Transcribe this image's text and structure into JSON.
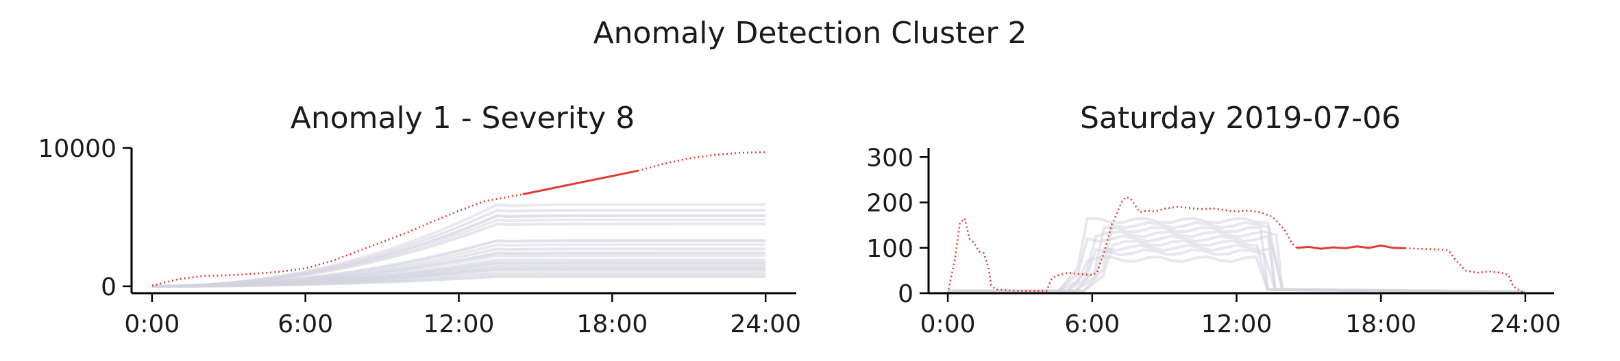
{
  "figure": {
    "suptitle": "Anomaly Detection Cluster 2"
  },
  "chart_data": [
    {
      "type": "line",
      "title": "Anomaly 1 - Severity 8",
      "xlabel": "",
      "ylabel": "",
      "xlim": [
        -0.8,
        25.2
      ],
      "ylim": [
        -500,
        10000
      ],
      "x_ticks": [
        0,
        6,
        12,
        18,
        24
      ],
      "x_tick_labels": [
        "0:00",
        "6:00",
        "12:00",
        "18:00",
        "24:00"
      ],
      "y_ticks": [
        0,
        10000
      ],
      "y_tick_labels": [
        "0",
        "10000"
      ],
      "grid": false,
      "legend": "none",
      "colors": {
        "background_series": "#d3d3df",
        "highlight": "#e03a33"
      },
      "background_final_values": [
        5900,
        5500,
        5100,
        4800,
        4500,
        3300,
        3000,
        2700,
        2400,
        2200,
        1900,
        1700,
        1550,
        1400,
        1250,
        1100,
        900,
        700
      ],
      "highlight": {
        "name": "",
        "x": [
          0,
          1,
          2,
          3,
          4,
          5,
          6,
          7,
          8,
          9,
          10,
          11,
          12,
          13,
          14.5,
          19,
          20,
          21,
          22,
          23,
          24
        ],
        "y": [
          50,
          500,
          750,
          800,
          900,
          1050,
          1300,
          1800,
          2500,
          3200,
          3900,
          4700,
          5450,
          6150,
          6650,
          8350,
          8850,
          9250,
          9500,
          9650,
          9700
        ],
        "solid_range": [
          14.5,
          19
        ]
      }
    },
    {
      "type": "line",
      "title": "Saturday 2019-07-06",
      "xlabel": "",
      "ylabel": "",
      "xlim": [
        -0.8,
        25.2
      ],
      "ylim": [
        0,
        320
      ],
      "x_ticks": [
        0,
        6,
        12,
        18,
        24
      ],
      "x_tick_labels": [
        "0:00",
        "6:00",
        "12:00",
        "18:00",
        "24:00"
      ],
      "y_ticks": [
        0,
        100,
        200,
        300
      ],
      "y_tick_labels": [
        "0",
        "100",
        "200",
        "300"
      ],
      "grid": false,
      "legend": "none",
      "colors": {
        "background_series": "#d3d3df",
        "highlight": "#e03a33"
      },
      "background_plateaus": [
        75,
        90,
        100,
        110,
        120,
        130,
        140,
        150,
        160
      ],
      "highlight": {
        "name": "",
        "x": [
          0,
          0.3,
          0.5,
          0.7,
          0.9,
          1.1,
          1.3,
          1.5,
          1.7,
          1.8,
          2,
          3,
          4.1,
          4.3,
          4.5,
          5,
          5.5,
          6,
          6.2,
          6.5,
          6.8,
          7,
          7.2,
          7.4,
          7.6,
          7.8,
          8,
          8.3,
          8.6,
          9,
          9.5,
          10,
          10.5,
          11,
          11.5,
          12,
          12.5,
          13,
          13.5,
          14,
          14.3,
          14.5,
          15,
          15.5,
          16,
          16.5,
          17,
          17.5,
          18,
          18.5,
          19,
          19.5,
          20,
          20.5,
          20.8,
          21,
          21.5,
          22,
          22.5,
          23,
          23.3,
          23.5,
          23.8,
          24
        ],
        "y": [
          0,
          75,
          155,
          165,
          120,
          110,
          92,
          88,
          55,
          18,
          8,
          5,
          5,
          30,
          38,
          45,
          42,
          40,
          45,
          90,
          150,
          172,
          198,
          212,
          208,
          192,
          178,
          182,
          180,
          186,
          190,
          188,
          185,
          187,
          183,
          180,
          182,
          178,
          168,
          140,
          110,
          100,
          102,
          98,
          101,
          99,
          103,
          100,
          105,
          100,
          99,
          98,
          97,
          96,
          95,
          80,
          50,
          45,
          48,
          45,
          40,
          15,
          5,
          0
        ],
        "solid_range": [
          14.5,
          19
        ]
      }
    }
  ]
}
